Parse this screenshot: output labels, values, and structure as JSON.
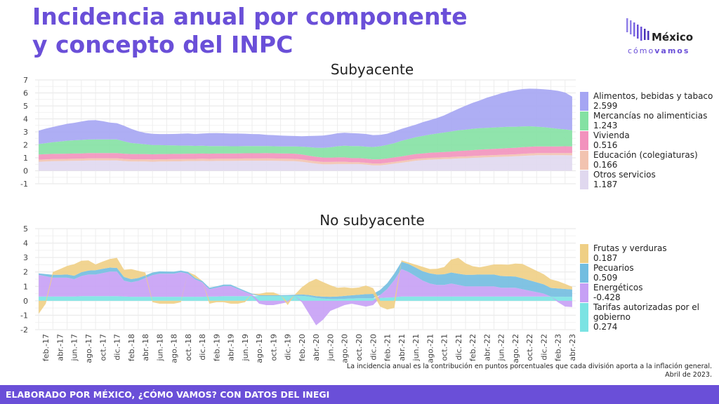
{
  "header": {
    "title": "Incidencia anual por componente y concepto del INPC",
    "logo_name": "México",
    "logo_sub_1": "cómo",
    "logo_sub_2": "vamos"
  },
  "footer": {
    "credit": "ELABORADO POR MÉXICO, ¿CÓMO VAMOS? CON DATOS DEL INEGI"
  },
  "note": {
    "line1": "La incidencia anual es la contribución en puntos porcentuales que cada división aporta a la inflación general.",
    "line2": "Abril de 2023."
  },
  "chart_data": [
    {
      "type": "area",
      "stacked": true,
      "title": "Subyacente",
      "xlabel": "",
      "ylabel": "",
      "ylim": [
        -1,
        7
      ],
      "yticks": [
        -1,
        0,
        1,
        2,
        3,
        4,
        5,
        6,
        7
      ],
      "grid": true,
      "legend_position": "right",
      "x": [
        "ene.-17",
        "feb.-17",
        "mar.-17",
        "abr.-17",
        "may.-17",
        "jun.-17",
        "jul.-17",
        "ago.-17",
        "sep.-17",
        "oct.-17",
        "nov.-17",
        "dic.-17",
        "ene.-18",
        "feb.-18",
        "mar.-18",
        "abr.-18",
        "may.-18",
        "jun.-18",
        "jul.-18",
        "ago.-18",
        "sep.-18",
        "oct.-18",
        "nov.-18",
        "dic.-18",
        "ene.-19",
        "feb.-19",
        "mar.-19",
        "abr.-19",
        "may.-19",
        "jun.-19",
        "jul.-19",
        "ago.-19",
        "sep.-19",
        "oct.-19",
        "nov.-19",
        "dic.-19",
        "ene.-20",
        "feb.-20",
        "mar.-20",
        "abr.-20",
        "may.-20",
        "jun.-20",
        "jul.-20",
        "ago.-20",
        "sep.-20",
        "oct.-20",
        "nov.-20",
        "dic.-20",
        "ene.-21",
        "feb.-21",
        "mar.-21",
        "abr.-21",
        "may.-21",
        "jun.-21",
        "jul.-21",
        "ago.-21",
        "sep.-21",
        "oct.-21",
        "nov.-21",
        "dic.-21",
        "ene.-22",
        "feb.-22",
        "mar.-22",
        "abr.-22",
        "may.-22",
        "jun.-22",
        "jul.-22",
        "ago.-22",
        "sep.-22",
        "oct.-22",
        "nov.-22",
        "dic.-22",
        "ene.-23",
        "feb.-23",
        "mar.-23",
        "abr.-23"
      ],
      "xticks": [
        "feb.-17",
        "abr.-17",
        "jun.-17",
        "ago.-17",
        "oct.-17",
        "dic.-17",
        "feb.-18",
        "abr.-18",
        "jun.-18",
        "ago.-18",
        "oct.-18",
        "dic.-18",
        "feb.-19",
        "abr.-19",
        "jun.-19",
        "ago.-19",
        "oct.-19",
        "dic.-19",
        "feb.-20",
        "abr.-20",
        "jun.-20",
        "ago.-20",
        "oct.-20",
        "dic.-20",
        "feb.-21",
        "abr.-21",
        "jun.-21",
        "ago.-21",
        "oct.-21",
        "dic.-21",
        "feb.-22",
        "abr.-22",
        "jun.-22",
        "ago.-22",
        "oct.-22",
        "dic.-22",
        "feb.-23",
        "abr.-23"
      ],
      "series": [
        {
          "name": "Otros servicios",
          "value_label": "1.187",
          "color": "#e0d8ef",
          "values": [
            0.7,
            0.72,
            0.74,
            0.75,
            0.76,
            0.77,
            0.78,
            0.8,
            0.8,
            0.8,
            0.8,
            0.8,
            0.75,
            0.72,
            0.72,
            0.72,
            0.7,
            0.72,
            0.72,
            0.73,
            0.73,
            0.75,
            0.75,
            0.76,
            0.75,
            0.76,
            0.76,
            0.76,
            0.77,
            0.78,
            0.78,
            0.78,
            0.78,
            0.77,
            0.76,
            0.75,
            0.74,
            0.7,
            0.62,
            0.55,
            0.5,
            0.5,
            0.52,
            0.52,
            0.52,
            0.52,
            0.48,
            0.42,
            0.42,
            0.48,
            0.55,
            0.62,
            0.7,
            0.78,
            0.82,
            0.86,
            0.88,
            0.9,
            0.92,
            0.95,
            0.97,
            1.0,
            1.02,
            1.04,
            1.06,
            1.08,
            1.1,
            1.12,
            1.15,
            1.18,
            1.2,
            1.2,
            1.2,
            1.2,
            1.2,
            1.19
          ]
        },
        {
          "name": "Educación (colegiaturas)",
          "value_label": "0.166",
          "color": "#f2c3b0",
          "values": [
            0.16,
            0.16,
            0.16,
            0.16,
            0.16,
            0.16,
            0.16,
            0.16,
            0.17,
            0.17,
            0.17,
            0.17,
            0.17,
            0.17,
            0.17,
            0.17,
            0.17,
            0.17,
            0.17,
            0.17,
            0.17,
            0.17,
            0.17,
            0.17,
            0.17,
            0.17,
            0.17,
            0.17,
            0.17,
            0.17,
            0.17,
            0.17,
            0.18,
            0.18,
            0.18,
            0.18,
            0.18,
            0.18,
            0.18,
            0.18,
            0.18,
            0.18,
            0.18,
            0.18,
            0.14,
            0.14,
            0.14,
            0.14,
            0.14,
            0.14,
            0.14,
            0.14,
            0.14,
            0.14,
            0.14,
            0.14,
            0.14,
            0.14,
            0.14,
            0.14,
            0.14,
            0.14,
            0.15,
            0.15,
            0.15,
            0.15,
            0.15,
            0.15,
            0.16,
            0.16,
            0.16,
            0.16,
            0.16,
            0.16,
            0.17,
            0.17
          ]
        },
        {
          "name": "Vivienda",
          "value_label": "0.516",
          "color": "#f292bd",
          "values": [
            0.4,
            0.4,
            0.4,
            0.4,
            0.4,
            0.4,
            0.4,
            0.4,
            0.4,
            0.4,
            0.4,
            0.4,
            0.4,
            0.4,
            0.4,
            0.4,
            0.4,
            0.4,
            0.4,
            0.4,
            0.4,
            0.4,
            0.4,
            0.4,
            0.4,
            0.4,
            0.4,
            0.4,
            0.4,
            0.4,
            0.4,
            0.4,
            0.4,
            0.4,
            0.4,
            0.4,
            0.4,
            0.38,
            0.36,
            0.35,
            0.34,
            0.33,
            0.33,
            0.33,
            0.32,
            0.32,
            0.32,
            0.32,
            0.33,
            0.33,
            0.34,
            0.35,
            0.36,
            0.37,
            0.38,
            0.39,
            0.4,
            0.41,
            0.42,
            0.43,
            0.44,
            0.45,
            0.46,
            0.47,
            0.48,
            0.49,
            0.5,
            0.5,
            0.51,
            0.51,
            0.52,
            0.52,
            0.52,
            0.52,
            0.52,
            0.52
          ]
        },
        {
          "name": "Mercancías no alimenticias",
          "value_label": "1.243",
          "color": "#84e1a3",
          "values": [
            0.8,
            0.85,
            0.9,
            0.95,
            1.0,
            1.02,
            1.04,
            1.05,
            1.05,
            1.05,
            1.05,
            1.05,
            0.95,
            0.85,
            0.8,
            0.75,
            0.72,
            0.7,
            0.68,
            0.66,
            0.64,
            0.62,
            0.6,
            0.6,
            0.58,
            0.58,
            0.58,
            0.56,
            0.55,
            0.55,
            0.55,
            0.55,
            0.55,
            0.54,
            0.54,
            0.55,
            0.56,
            0.6,
            0.66,
            0.7,
            0.75,
            0.8,
            0.86,
            0.9,
            0.92,
            0.92,
            0.92,
            0.95,
            1.0,
            1.05,
            1.1,
            1.2,
            1.25,
            1.3,
            1.35,
            1.4,
            1.45,
            1.5,
            1.55,
            1.6,
            1.62,
            1.65,
            1.65,
            1.65,
            1.65,
            1.65,
            1.64,
            1.62,
            1.6,
            1.58,
            1.52,
            1.48,
            1.42,
            1.36,
            1.3,
            1.24
          ]
        },
        {
          "name": "Alimentos, bebidas y tabaco",
          "value_label": "2.599",
          "color": "#a5a5f3",
          "values": [
            1.04,
            1.12,
            1.18,
            1.24,
            1.3,
            1.35,
            1.42,
            1.48,
            1.48,
            1.4,
            1.3,
            1.25,
            1.2,
            1.1,
            0.96,
            0.88,
            0.86,
            0.84,
            0.86,
            0.88,
            0.92,
            0.94,
            0.92,
            0.94,
            1.0,
            1.0,
            0.98,
            0.98,
            0.98,
            0.96,
            0.93,
            0.92,
            0.86,
            0.86,
            0.84,
            0.82,
            0.8,
            0.8,
            0.86,
            0.92,
            0.95,
            0.98,
            1.0,
            1.0,
            1.0,
            0.98,
            0.98,
            0.92,
            0.88,
            0.86,
            0.9,
            0.92,
            0.94,
            0.96,
            1.06,
            1.12,
            1.2,
            1.32,
            1.5,
            1.66,
            1.84,
            2.0,
            2.14,
            2.32,
            2.46,
            2.6,
            2.72,
            2.82,
            2.88,
            2.9,
            2.92,
            2.92,
            2.94,
            2.92,
            2.84,
            2.6
          ]
        }
      ]
    },
    {
      "type": "area",
      "stacked": true,
      "title": "No subyacente",
      "xlabel": "",
      "ylabel": "",
      "ylim": [
        -2,
        5
      ],
      "yticks": [
        -2,
        -1,
        0,
        1,
        2,
        3,
        4,
        5
      ],
      "grid": true,
      "legend_position": "right",
      "series": [
        {
          "name": "Tarifas autorizadas por el gobierno",
          "value_label": "0.274",
          "color": "#7be3e3",
          "values": [
            0.3,
            0.3,
            0.3,
            0.3,
            0.3,
            0.3,
            0.32,
            0.32,
            0.32,
            0.32,
            0.32,
            0.32,
            0.3,
            0.28,
            0.28,
            0.28,
            0.28,
            0.28,
            0.28,
            0.28,
            0.28,
            0.28,
            0.28,
            0.28,
            0.3,
            0.3,
            0.32,
            0.32,
            0.32,
            0.32,
            0.33,
            0.33,
            0.33,
            0.33,
            0.34,
            0.34,
            0.34,
            0.34,
            0.3,
            0.2,
            0.15,
            0.12,
            0.12,
            0.14,
            0.16,
            0.18,
            0.18,
            0.18,
            0.2,
            0.22,
            0.24,
            0.3,
            0.3,
            0.3,
            0.3,
            0.3,
            0.3,
            0.3,
            0.3,
            0.3,
            0.3,
            0.3,
            0.3,
            0.3,
            0.3,
            0.3,
            0.3,
            0.3,
            0.3,
            0.3,
            0.3,
            0.3,
            0.29,
            0.28,
            0.28,
            0.27
          ]
        },
        {
          "name": "Energéticos",
          "value_label": "-0.428",
          "color": "#c6a0f5",
          "values": [
            1.5,
            1.4,
            1.3,
            1.3,
            1.3,
            1.2,
            1.4,
            1.5,
            1.5,
            1.6,
            1.7,
            1.7,
            1.1,
            1.0,
            1.1,
            1.3,
            1.5,
            1.6,
            1.6,
            1.6,
            1.7,
            1.6,
            1.2,
            1.0,
            0.5,
            0.6,
            0.7,
            0.7,
            0.5,
            0.3,
            0.1,
            -0.2,
            -0.3,
            -0.3,
            -0.2,
            -0.1,
            0.0,
            -0.1,
            -0.9,
            -1.7,
            -1.3,
            -0.7,
            -0.5,
            -0.3,
            -0.2,
            -0.3,
            -0.4,
            -0.3,
            0.2,
            0.6,
            1.2,
            1.9,
            1.7,
            1.4,
            1.1,
            0.9,
            0.8,
            0.8,
            0.9,
            0.8,
            0.7,
            0.7,
            0.7,
            0.7,
            0.7,
            0.6,
            0.6,
            0.6,
            0.5,
            0.4,
            0.3,
            0.2,
            0.0,
            -0.1,
            -0.4,
            -0.43
          ]
        },
        {
          "name": "Pecuarios",
          "value_label": "0.509",
          "color": "#72bde0",
          "values": [
            0.1,
            0.15,
            0.2,
            0.2,
            0.22,
            0.24,
            0.26,
            0.28,
            0.3,
            0.3,
            0.28,
            0.26,
            0.25,
            0.22,
            0.2,
            0.18,
            0.18,
            0.16,
            0.15,
            0.14,
            0.12,
            0.12,
            0.1,
            0.1,
            0.1,
            0.1,
            0.1,
            0.1,
            0.08,
            0.08,
            0.06,
            0.05,
            0.05,
            0.05,
            0.05,
            0.06,
            0.08,
            0.1,
            0.1,
            0.12,
            0.14,
            0.16,
            0.18,
            0.2,
            0.22,
            0.24,
            0.28,
            0.3,
            0.35,
            0.4,
            0.45,
            0.5,
            0.55,
            0.6,
            0.65,
            0.7,
            0.72,
            0.74,
            0.76,
            0.78,
            0.8,
            0.8,
            0.82,
            0.82,
            0.82,
            0.82,
            0.8,
            0.78,
            0.76,
            0.72,
            0.68,
            0.64,
            0.6,
            0.58,
            0.54,
            0.51
          ]
        },
        {
          "name": "Frutas y verduras",
          "value_label": "0.187",
          "color": "#efcf85",
          "values": [
            -0.9,
            -0.2,
            0.2,
            0.4,
            0.6,
            0.8,
            0.8,
            0.7,
            0.4,
            0.5,
            0.6,
            0.7,
            0.5,
            0.7,
            0.5,
            0.2,
            -0.1,
            -0.2,
            -0.2,
            -0.2,
            -0.1,
            0.0,
            0.2,
            0.0,
            -0.2,
            -0.1,
            -0.1,
            -0.2,
            -0.2,
            -0.1,
            0.0,
            0.1,
            0.2,
            0.2,
            0.0,
            -0.2,
            0.0,
            0.5,
            0.9,
            1.2,
            1.0,
            0.8,
            0.6,
            0.6,
            0.5,
            0.5,
            0.6,
            0.4,
            -0.4,
            -0.6,
            -0.5,
            0.1,
            0.1,
            0.2,
            0.3,
            0.3,
            0.4,
            0.5,
            0.9,
            1.1,
            0.8,
            0.6,
            0.5,
            0.6,
            0.7,
            0.8,
            0.8,
            0.9,
            1.0,
            0.9,
            0.8,
            0.7,
            0.6,
            0.5,
            0.35,
            0.19
          ]
        }
      ]
    }
  ]
}
